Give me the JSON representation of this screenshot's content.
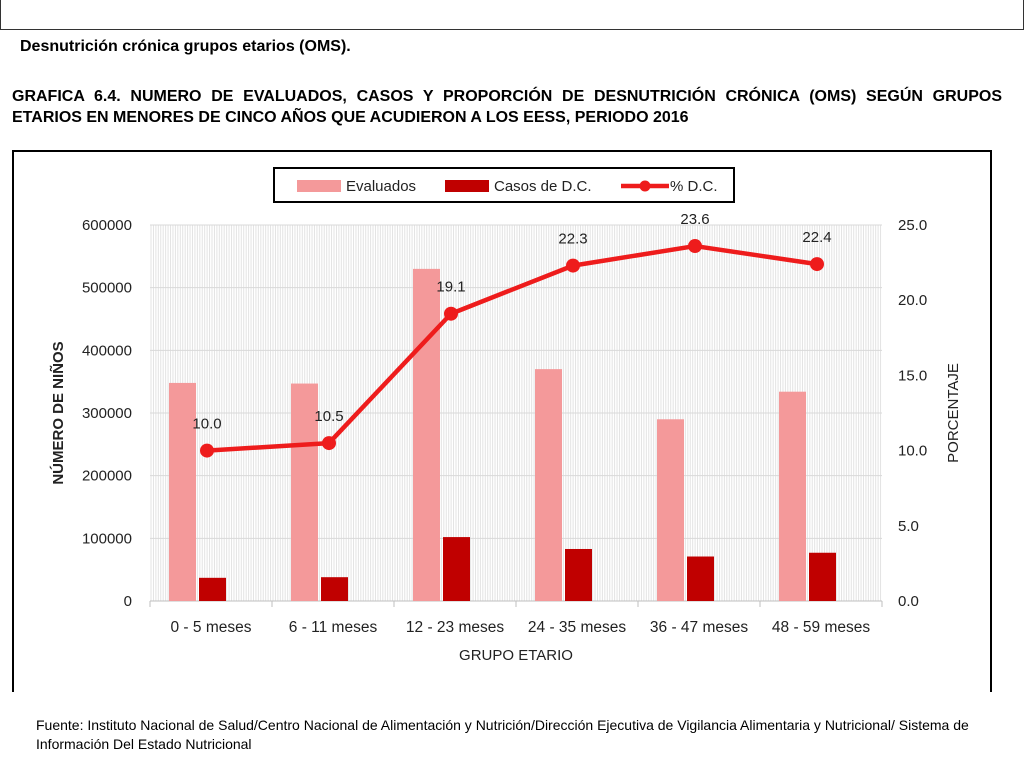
{
  "header": {
    "section_title": "Desnutrición crónica grupos etarios (OMS).",
    "graph_title": "GRAFICA 6.4. NUMERO DE EVALUADOS, CASOS Y PROPORCIÓN DE DESNUTRICIÓN CRÓNICA (OMS) SEGÚN GRUPOS ETARIOS EN MENORES DE CINCO AÑOS QUE ACUDIERON A LOS EESS, PERIODO 2016"
  },
  "footer": {
    "source": "Fuente:  Instituto Nacional de Salud/Centro Nacional de Alimentación y Nutrición/Dirección Ejecutiva de Vigilancia Alimentaria y Nutricional/ Sistema de Información Del Estado Nutricional"
  },
  "chart_data": {
    "type": "bar",
    "categories": [
      "0 - 5 meses",
      "6 - 11 meses",
      "12 - 23 meses",
      "24 - 35 meses",
      "36 - 47 meses",
      "48 - 59 meses"
    ],
    "series": [
      {
        "name": "Evaluados",
        "kind": "bar",
        "axis": "left",
        "color": "#f4999a",
        "values": [
          348000,
          347000,
          530000,
          370000,
          290000,
          334000
        ]
      },
      {
        "name": "Casos de D.C.",
        "kind": "bar",
        "axis": "left",
        "color": "#c00000",
        "values": [
          37000,
          38000,
          102000,
          83000,
          71000,
          77000
        ]
      },
      {
        "name": "% D.C.",
        "kind": "line",
        "axis": "right",
        "color": "#ee1c1c",
        "values": [
          10.0,
          10.5,
          19.1,
          22.3,
          23.6,
          22.4
        ],
        "labels": [
          "10.0",
          "10.5",
          "19.1",
          "22.3",
          "23.6",
          "22.4"
        ]
      }
    ],
    "xlabel": "GRUPO ETARIO",
    "ylabel": "NÚMERO DE NIÑOS",
    "ylabel_right": "PORCENTAJE",
    "ylim": [
      0,
      600000
    ],
    "ylim_right": [
      0,
      25
    ],
    "yticks": [
      "0",
      "100000",
      "200000",
      "300000",
      "400000",
      "500000",
      "600000"
    ],
    "yticks_right": [
      "0.0",
      "5.0",
      "10.0",
      "15.0",
      "20.0",
      "25.0"
    ],
    "grid": true,
    "legend_position": "top-center"
  }
}
